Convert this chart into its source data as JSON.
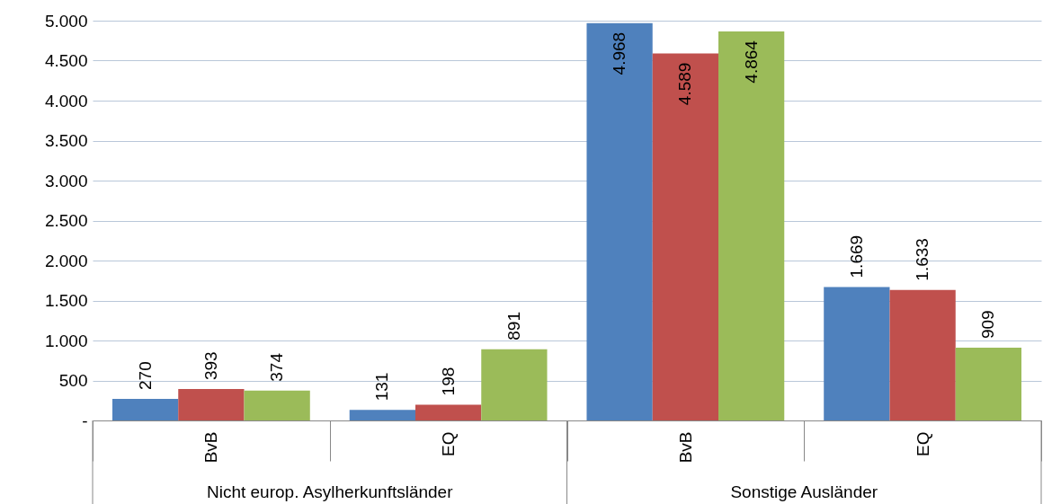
{
  "chart_data": {
    "type": "bar",
    "categories": [
      "BvB",
      "EQ",
      "BvB",
      "EQ"
    ],
    "series": [
      {
        "color": "#4f81bd",
        "values": [
          270,
          131,
          4968,
          1669
        ],
        "value_labels": [
          "270",
          "131",
          "4.968",
          "1.669"
        ]
      },
      {
        "color": "#c0504d",
        "values": [
          393,
          198,
          4589,
          1633
        ],
        "value_labels": [
          "393",
          "198",
          "4.589",
          "1.633"
        ]
      },
      {
        "color": "#9bbb59",
        "values": [
          374,
          891,
          4864,
          909
        ],
        "value_labels": [
          "374",
          "891",
          "4.864",
          "909"
        ]
      }
    ],
    "ylim": [
      0,
      5000
    ],
    "yticks": [
      {
        "value": 0,
        "label": "-"
      },
      500,
      {
        "value": 1000,
        "label": "1.000"
      },
      {
        "value": 1500,
        "label": "1.500"
      },
      {
        "value": 2000,
        "label": "2.000"
      },
      {
        "value": 2500,
        "label": "2.500"
      },
      {
        "value": 3000,
        "label": "3.000"
      },
      {
        "value": 3500,
        "label": "3.500"
      },
      {
        "value": 4000,
        "label": "4.000"
      },
      {
        "value": 4500,
        "label": "4.500"
      },
      {
        "value": 5000,
        "label": "5.000"
      }
    ],
    "grid": "y",
    "annotations": [
      "Nicht europ. Asylherkunftsländer",
      "Sonstige Ausländer"
    ]
  }
}
